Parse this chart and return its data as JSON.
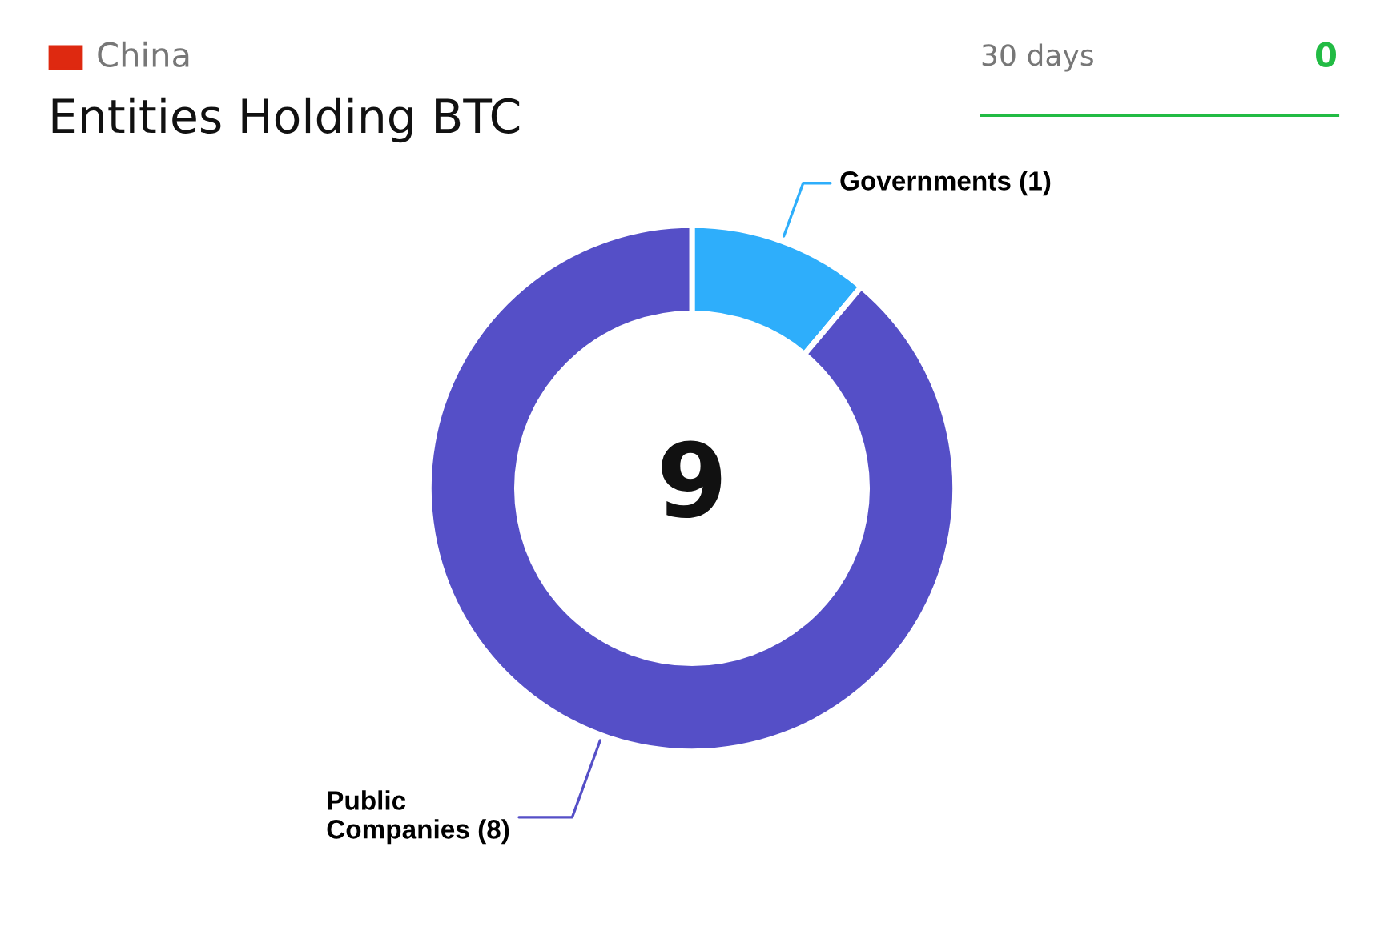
{
  "chart_data": {
    "type": "donut",
    "title": "Entities Holding BTC",
    "categories": [
      "Governments (1)",
      "Public Companies (8)"
    ],
    "values": [
      1,
      8
    ],
    "colors": [
      "#2eaefb",
      "#554fc7"
    ],
    "annotations": [
      "China",
      "30 days",
      "0",
      "9"
    ]
  }
}
